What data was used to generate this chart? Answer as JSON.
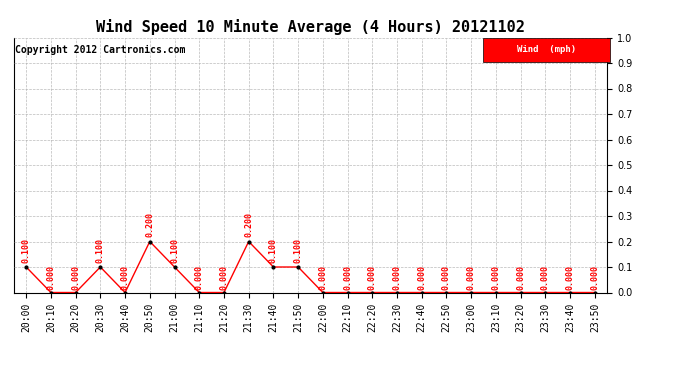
{
  "title": "Wind Speed 10 Minute Average (4 Hours) 20121102",
  "copyright": "Copyright 2012 Cartronics.com",
  "legend_label": "Wind  (mph)",
  "xlabels": [
    "20:00",
    "20:10",
    "20:20",
    "20:30",
    "20:40",
    "20:50",
    "21:00",
    "21:10",
    "21:20",
    "21:30",
    "21:40",
    "21:50",
    "22:00",
    "22:10",
    "22:20",
    "22:30",
    "22:40",
    "22:50",
    "23:00",
    "23:10",
    "23:20",
    "23:30",
    "23:40",
    "23:50"
  ],
  "wind_values": [
    0.1,
    0.0,
    0.0,
    0.1,
    0.0,
    0.2,
    0.1,
    0.0,
    0.0,
    0.2,
    0.1,
    0.1,
    0.0,
    0.0,
    0.0,
    0.0,
    0.0,
    0.0,
    0.0,
    0.0,
    0.0,
    0.0,
    0.0,
    0.0
  ],
  "line_color": "#ff0000",
  "marker_color": "#000000",
  "label_color": "#ff0000",
  "background_color": "#ffffff",
  "grid_color": "#aaaaaa",
  "ylim": [
    0.0,
    1.0
  ],
  "yticks": [
    0.0,
    0.1,
    0.2,
    0.3,
    0.4,
    0.5,
    0.6,
    0.7,
    0.8,
    0.9,
    1.0
  ],
  "legend_bg": "#ff0000",
  "legend_text_color": "#ffffff",
  "title_fontsize": 11,
  "copyright_fontsize": 7,
  "label_fontsize": 6,
  "tick_fontsize": 7,
  "ytick_fontsize": 7
}
